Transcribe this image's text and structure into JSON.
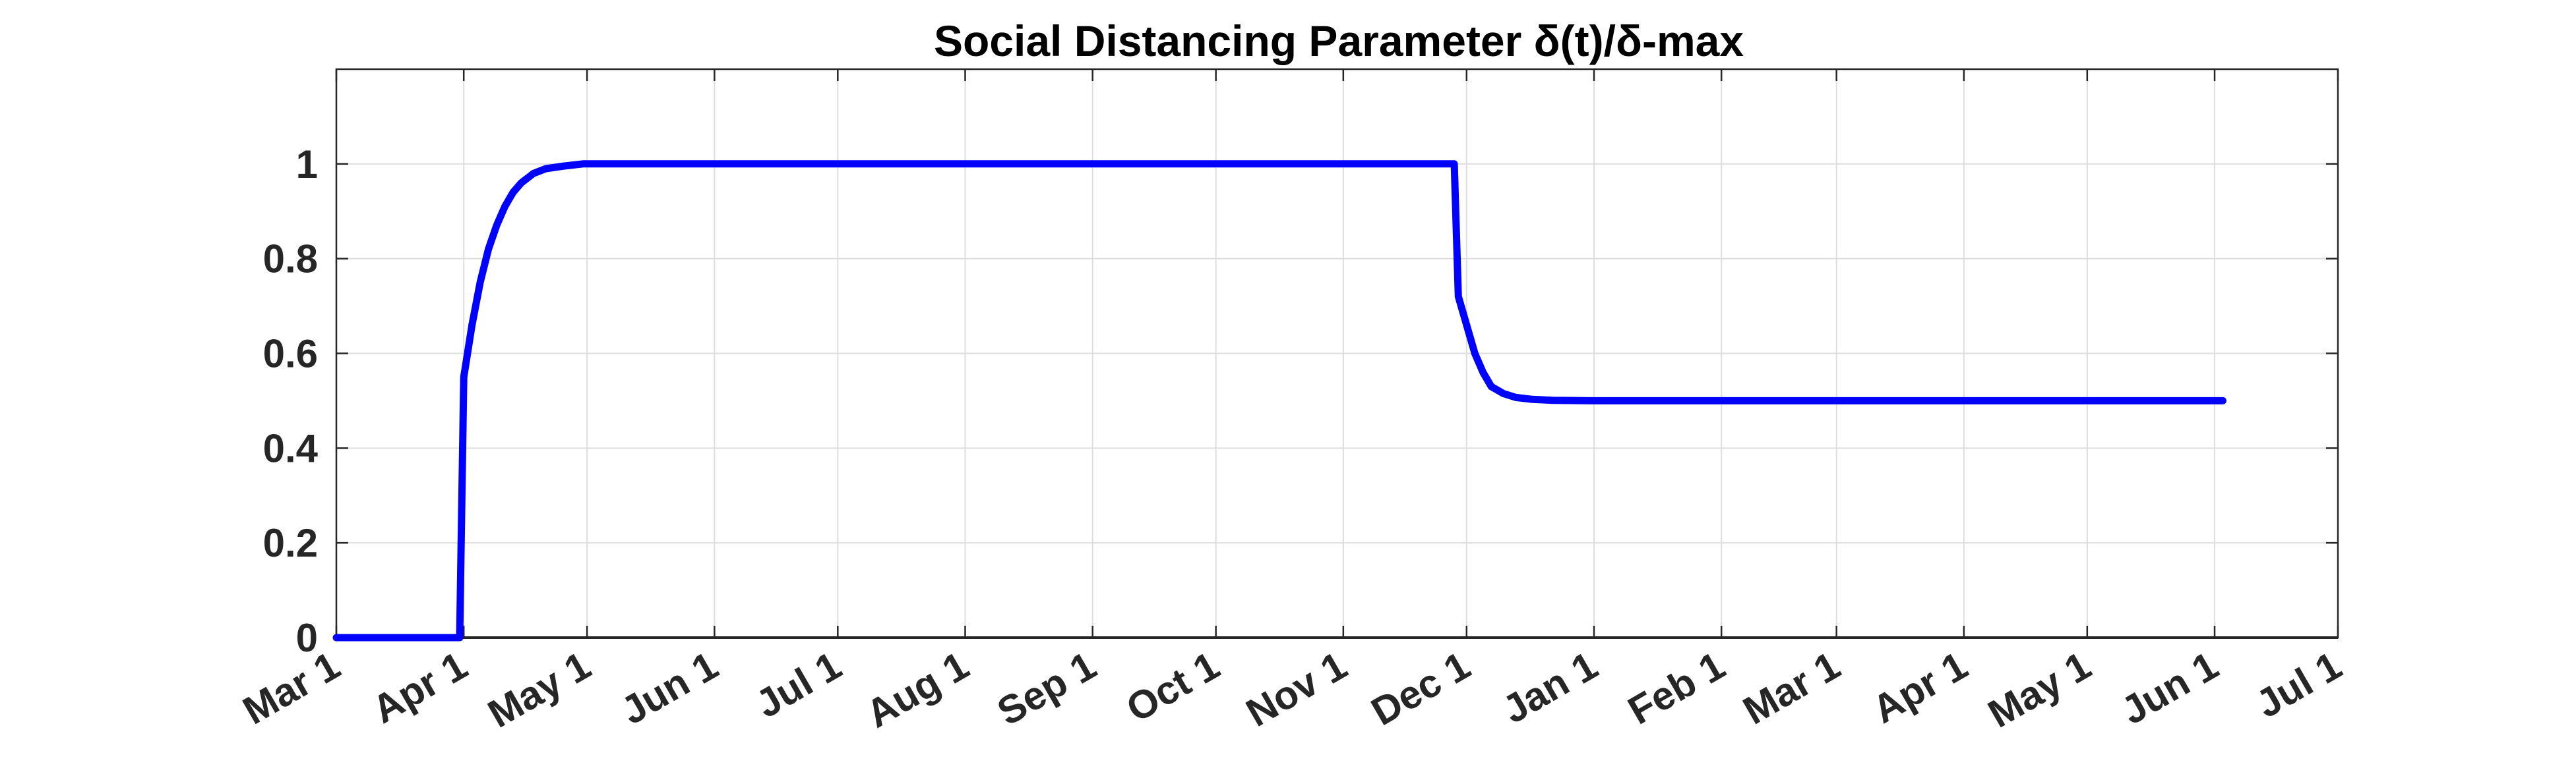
{
  "chart_data": {
    "type": "line",
    "title": "Social Distancing Parameter δ(t)/δ-max",
    "xlabel": "",
    "ylabel": "",
    "x_tick_labels": [
      "Mar 1",
      "Apr 1",
      "May 1",
      "Jun 1",
      "Jul 1",
      "Aug 1",
      "Sep 1",
      "Oct 1",
      "Nov 1",
      "Dec 1",
      "Jan 1",
      "Feb 1",
      "Mar 1",
      "Apr 1",
      "May 1",
      "Jun 1",
      "Jul 1"
    ],
    "y_ticks": [
      0,
      0.2,
      0.4,
      0.6,
      0.8,
      1
    ],
    "y_tick_labels": [
      "0",
      "0.2",
      "0.4",
      "0.6",
      "0.8",
      "1"
    ],
    "ylim": [
      0,
      1.2
    ],
    "xlim": [
      "2020-03-01",
      "2021-07-01"
    ],
    "grid": true,
    "series_color": "#0000ff",
    "series": [
      {
        "x": [
          "2020-03-01",
          "2020-03-15",
          "2020-03-31",
          "2020-04-01",
          "2020-04-03",
          "2020-04-05",
          "2020-04-07",
          "2020-04-09",
          "2020-04-11",
          "2020-04-13",
          "2020-04-15",
          "2020-04-18",
          "2020-04-21",
          "2020-04-25",
          "2020-04-30",
          "2020-05-10",
          "2020-06-01",
          "2020-08-01",
          "2020-10-01",
          "2020-11-28",
          "2020-11-29",
          "2020-12-01",
          "2020-12-03",
          "2020-12-05",
          "2020-12-07",
          "2020-12-10",
          "2020-12-13",
          "2020-12-17",
          "2020-12-22",
          "2021-01-01",
          "2021-03-01",
          "2021-06-03"
        ],
        "values": [
          0,
          0,
          0,
          0.55,
          0.66,
          0.75,
          0.82,
          0.87,
          0.91,
          0.94,
          0.96,
          0.98,
          0.99,
          0.995,
          1,
          1,
          1,
          1,
          1,
          1,
          0.72,
          0.66,
          0.6,
          0.56,
          0.53,
          0.515,
          0.507,
          0.503,
          0.501,
          0.5,
          0.5,
          0.5
        ]
      }
    ]
  }
}
